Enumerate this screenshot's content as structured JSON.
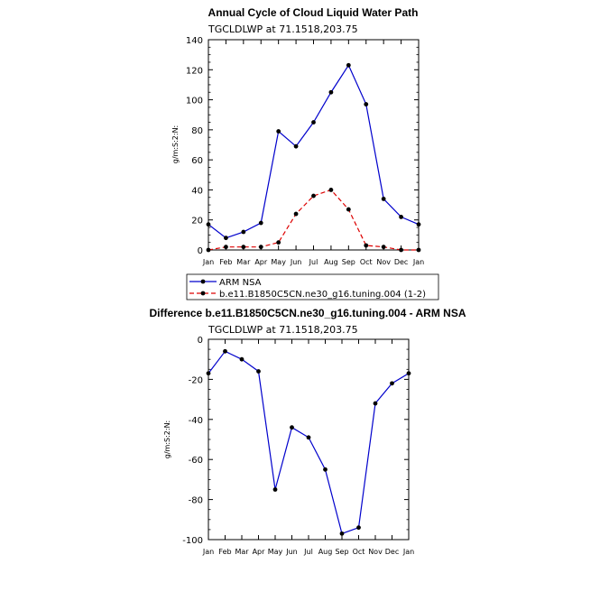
{
  "chart_data": [
    {
      "type": "line",
      "title": "Annual Cycle of Cloud Liquid Water Path",
      "subtitle": "TGCLDLWP at 71.1518,203.75",
      "ylabel": "g/m:S:2:N:",
      "xlabel": "",
      "ylim": [
        0,
        140
      ],
      "yticks": [
        0,
        20,
        40,
        60,
        80,
        100,
        120,
        140
      ],
      "categories": [
        "Jan",
        "Feb",
        "Mar",
        "Apr",
        "May",
        "Jun",
        "Jul",
        "Aug",
        "Sep",
        "Oct",
        "Nov",
        "Dec",
        "Jan"
      ],
      "grid": false,
      "legend_position": "bottom",
      "series": [
        {
          "name": "ARM NSA",
          "color": "#0000cc",
          "dash": "solid",
          "values": [
            17,
            8,
            12,
            18,
            79,
            69,
            85,
            105,
            123,
            97,
            34,
            22,
            17
          ]
        },
        {
          "name": "b.e11.B1850C5CN.ne30_g16.tuning.004 (1-2)",
          "color": "#dd0000",
          "dash": "dashed",
          "values": [
            0,
            2,
            2,
            2,
            5,
            24,
            36,
            40,
            27,
            3,
            2,
            0,
            0
          ]
        }
      ]
    },
    {
      "type": "line",
      "title": "Difference b.e11.B1850C5CN.ne30_g16.tuning.004 - ARM NSA",
      "subtitle": "TGCLDLWP at 71.1518,203.75",
      "ylabel": "g/m:S:2:N:",
      "xlabel": "",
      "ylim": [
        -100,
        0
      ],
      "yticks": [
        -100,
        -80,
        -60,
        -40,
        -20,
        0
      ],
      "categories": [
        "Jan",
        "Feb",
        "Mar",
        "Apr",
        "May",
        "Jun",
        "Jul",
        "Aug",
        "Sep",
        "Oct",
        "Nov",
        "Dec",
        "Jan"
      ],
      "grid": false,
      "series": [
        {
          "name": "",
          "color": "#0000cc",
          "dash": "solid",
          "values": [
            -17,
            -6,
            -10,
            -16,
            -75,
            -44,
            -49,
            -65,
            -97,
            -94,
            -32,
            -22,
            -17
          ]
        }
      ]
    }
  ]
}
